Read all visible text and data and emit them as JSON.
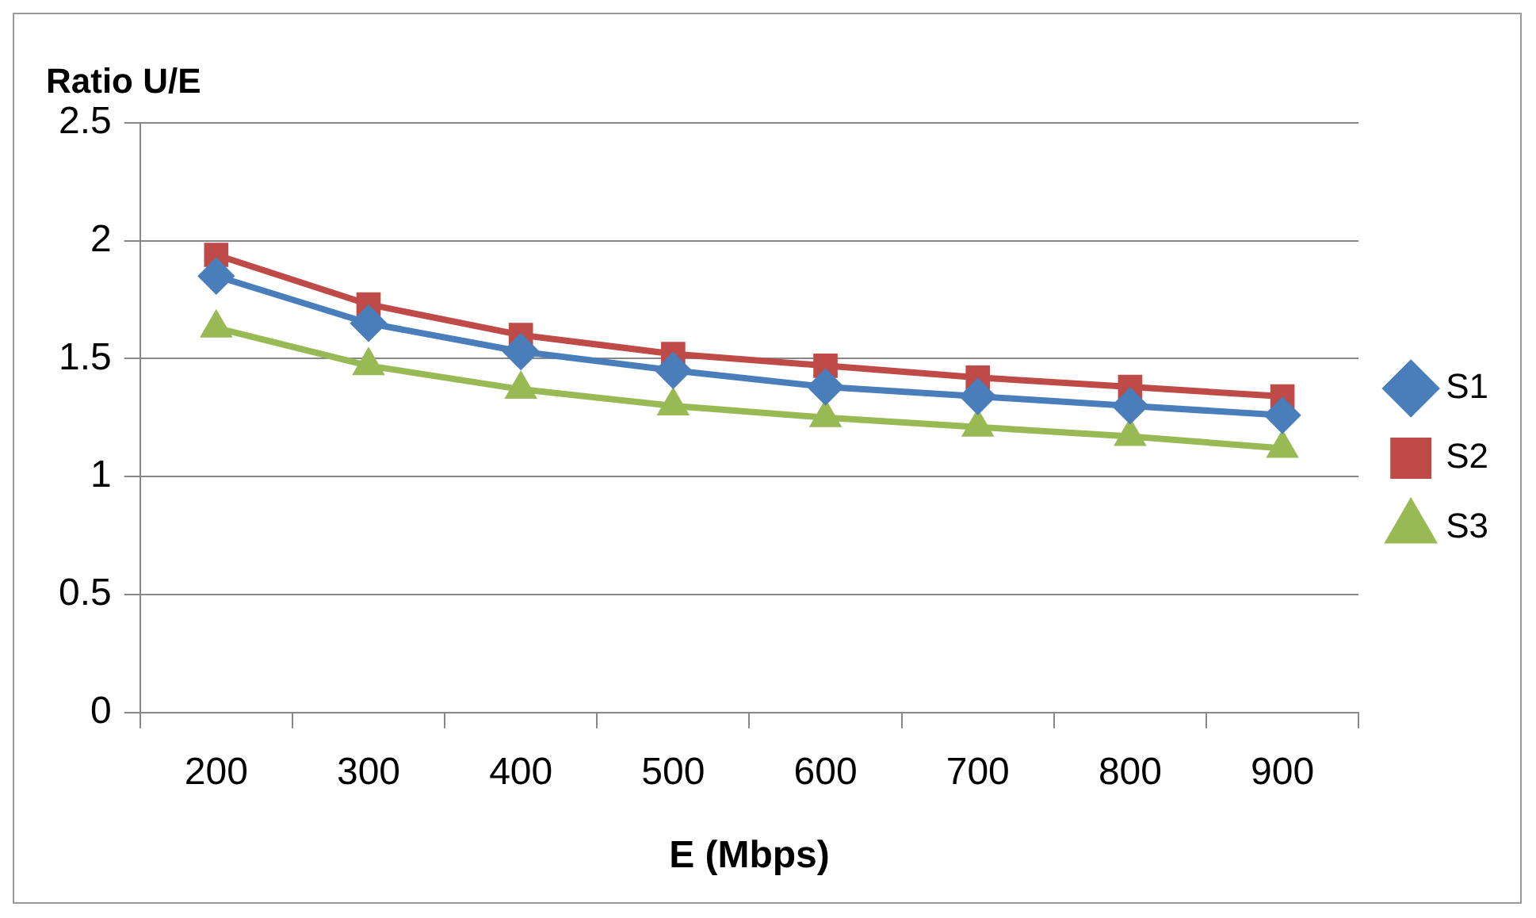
{
  "chart_data": {
    "type": "line",
    "ylabel": "Ratio U/E",
    "xlabel": "E (Mbps)",
    "categories": [
      "200",
      "300",
      "400",
      "500",
      "600",
      "700",
      "800",
      "900"
    ],
    "series": [
      {
        "name": "S1",
        "color": "#4a7ebb",
        "marker": "diamond",
        "values": [
          1.85,
          1.65,
          1.53,
          1.45,
          1.38,
          1.34,
          1.3,
          1.26
        ]
      },
      {
        "name": "S2",
        "color": "#be4b48",
        "marker": "square",
        "values": [
          1.94,
          1.73,
          1.6,
          1.52,
          1.47,
          1.42,
          1.38,
          1.34
        ]
      },
      {
        "name": "S3",
        "color": "#98b954",
        "marker": "triangle",
        "values": [
          1.63,
          1.47,
          1.37,
          1.3,
          1.25,
          1.21,
          1.17,
          1.12
        ]
      }
    ],
    "ylim": [
      0,
      2.5
    ],
    "yticks": [
      0,
      0.5,
      1,
      1.5,
      2,
      2.5
    ],
    "grid": "y",
    "legend": "right"
  }
}
